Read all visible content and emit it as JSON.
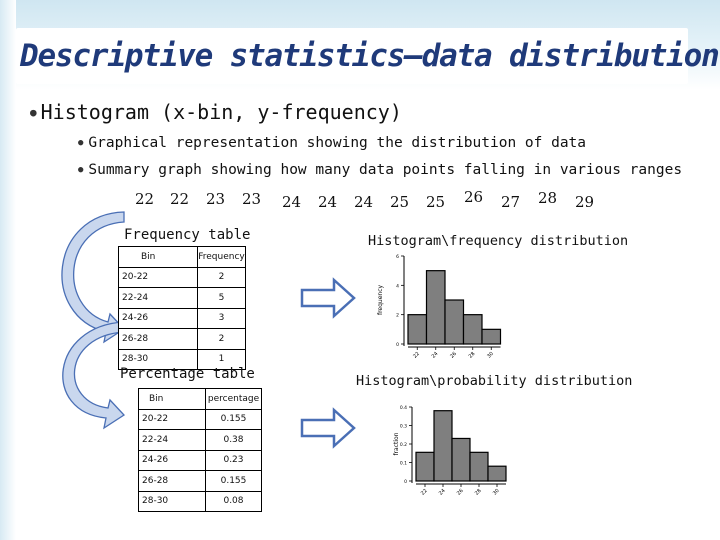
{
  "slide": {
    "title": "Descriptive statistics—data distribution",
    "bullet_main": "Histogram (x-bin, y-frequency)",
    "sub_bullets": [
      "Graphical representation showing the distribution of data",
      "Summary graph showing how many data points falling in various ranges"
    ],
    "data_values": [
      "22",
      "22",
      "23",
      "23",
      "24",
      "24",
      "24",
      "25",
      "25",
      "26",
      "27",
      "28",
      "29"
    ]
  },
  "frequency_table": {
    "title": "Frequency table",
    "headers": [
      "Bin",
      "Frequency"
    ],
    "rows": [
      [
        "20-22",
        "2"
      ],
      [
        "22-24",
        "5"
      ],
      [
        "24-26",
        "3"
      ],
      [
        "26-28",
        "2"
      ],
      [
        "28-30",
        "1"
      ]
    ]
  },
  "percentage_table": {
    "title": "Percentage table",
    "headers": [
      "Bin",
      "percentage"
    ],
    "rows": [
      [
        "20-22",
        "0.155"
      ],
      [
        "22-24",
        "0.38"
      ],
      [
        "24-26",
        "0.23"
      ],
      [
        "26-28",
        "0.155"
      ],
      [
        "28-30",
        "0.08"
      ]
    ]
  },
  "colors": {
    "title": "#1f3a7a",
    "bar_fill": "#7f7f7f",
    "arrow": "#4a6fb5",
    "curve_arrow": "#c9d7ee"
  },
  "chart_data": [
    {
      "type": "bar",
      "title": "Histogram\\frequency distribution",
      "ylabel": "frequency",
      "categories": [
        "20-22",
        "22-24",
        "24-26",
        "26-28",
        "28-30"
      ],
      "x_ticks": [
        "22",
        "24",
        "26",
        "28",
        "30"
      ],
      "values": [
        2,
        5,
        3,
        2,
        1
      ],
      "ylim": [
        0,
        6
      ],
      "y_ticks": [
        "0",
        "2",
        "4",
        "6"
      ]
    },
    {
      "type": "bar",
      "title": "Histogram\\probability distribution",
      "ylabel": "fraction",
      "categories": [
        "20-22",
        "22-24",
        "24-26",
        "26-28",
        "28-30"
      ],
      "x_ticks": [
        "22",
        "24",
        "26",
        "28",
        "30"
      ],
      "values": [
        0.155,
        0.38,
        0.23,
        0.155,
        0.08
      ],
      "ylim": [
        0,
        0.4
      ],
      "y_ticks": [
        "0",
        "0.1",
        "0.2",
        "0.3",
        "0.4"
      ]
    }
  ]
}
